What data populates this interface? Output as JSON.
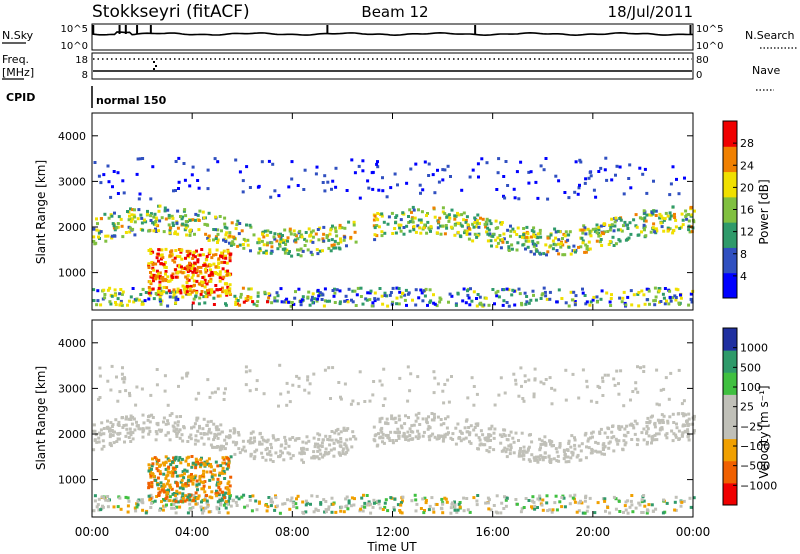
{
  "header": {
    "station": "Stokkseyri (fitACF)",
    "beam": "Beam 12",
    "date": "18/Jul/2011"
  },
  "noise_panel": {
    "left_label": "N.Sky",
    "right_label": "N.Search",
    "left_ticks": [
      "10^5",
      "10^0"
    ],
    "right_ticks": [
      "10^5",
      "10^0"
    ]
  },
  "freq_panel": {
    "left_label_1": "Freq.",
    "left_label_2": "[MHz]",
    "right_label": "Nave",
    "left_ticks": [
      "18",
      "8"
    ],
    "right_ticks": [
      "80",
      "0"
    ]
  },
  "cpid_panel": {
    "label": "CPID",
    "mode": "normal 150"
  },
  "chart_data": [
    {
      "type": "heatmap",
      "parameter": "Power",
      "ylabel": "Slant Range [km]",
      "ylim": [
        180,
        4500
      ],
      "y_ticks": [
        "4000",
        "3000",
        "2000",
        "1000"
      ],
      "colorbar_label": "Power [dB]",
      "colorbar_ticks": [
        "28",
        "24",
        "20",
        "16",
        "12",
        "8",
        "4"
      ],
      "colorbar_colors": [
        "#0000ff",
        "#3050c0",
        "#2f9a6a",
        "#80c040",
        "#f0e000",
        "#f08000",
        "#f00000"
      ]
    },
    {
      "type": "heatmap",
      "parameter": "Velocity",
      "ylabel": "Slant Range [km]",
      "ylim": [
        180,
        4500
      ],
      "y_ticks": [
        "4000",
        "3000",
        "2000",
        "1000"
      ],
      "colorbar_label": "Velocity [m s⁻¹]",
      "colorbar_ticks": [
        "1000",
        "500",
        "100",
        "25",
        "−25",
        "−100",
        "−500",
        "−1000"
      ],
      "colorbar_colors": [
        "#f00000",
        "#f06000",
        "#f0a000",
        "#c0c0b8",
        "#c0c0b8",
        "#40c040",
        "#2f9a6a",
        "#2030a0"
      ],
      "xlabel": "Time UT",
      "x_ticks": [
        "00:00",
        "04:00",
        "08:00",
        "12:00",
        "16:00",
        "20:00",
        "00:00"
      ],
      "xlim": [
        0,
        24
      ]
    }
  ]
}
